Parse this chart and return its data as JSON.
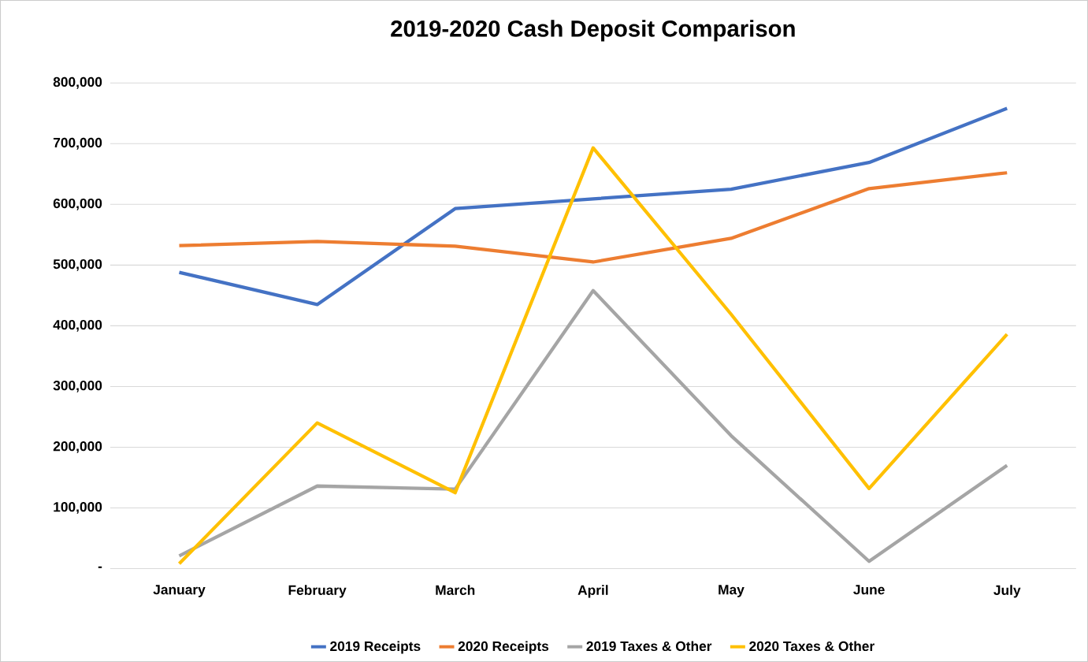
{
  "chart_data": {
    "type": "line",
    "title": "2019-2020 Cash Deposit Comparison",
    "categories": [
      "January",
      "February",
      "March",
      "April",
      "May",
      "June",
      "July"
    ],
    "series": [
      {
        "name": "2019 Receipts",
        "color": "#4472c4",
        "values": [
          488000,
          435000,
          593000,
          609000,
          625000,
          669000,
          758000
        ]
      },
      {
        "name": "2020 Receipts",
        "color": "#ed7d31",
        "values": [
          532000,
          539000,
          531000,
          505000,
          544000,
          626000,
          652000
        ]
      },
      {
        "name": "2019 Taxes & Other",
        "color": "#a5a5a5",
        "values": [
          21000,
          136000,
          131000,
          458000,
          219000,
          12000,
          170000
        ]
      },
      {
        "name": "2020 Taxes & Other",
        "color": "#ffc000",
        "values": [
          8000,
          240000,
          125000,
          693000,
          419000,
          132000,
          386000
        ]
      }
    ],
    "ylim": [
      0,
      800000
    ],
    "yticks": [
      {
        "value": 0,
        "label": "-"
      },
      {
        "value": 100000,
        "label": "100,000"
      },
      {
        "value": 200000,
        "label": "200,000"
      },
      {
        "value": 300000,
        "label": "300,000"
      },
      {
        "value": 400000,
        "label": "400,000"
      },
      {
        "value": 500000,
        "label": "500,000"
      },
      {
        "value": 600000,
        "label": "600,000"
      },
      {
        "value": 700000,
        "label": "700,000"
      },
      {
        "value": 800000,
        "label": "800,000"
      }
    ],
    "grid": "y",
    "legend": "bottom",
    "marker": "none",
    "line_style": "solid"
  }
}
